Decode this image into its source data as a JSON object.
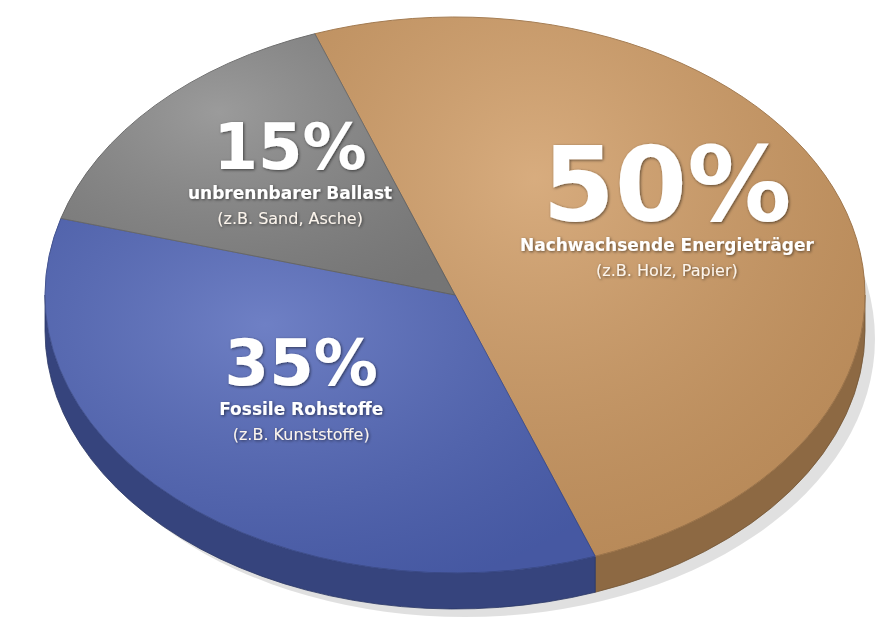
{
  "chart_data": {
    "type": "pie",
    "categories": [
      "Nachwachsende Energieträger",
      "Fossile Rohstoffe",
      "unbrennbarer Ballast"
    ],
    "values": [
      50,
      35,
      15
    ],
    "value_labels": [
      "50%",
      "35%",
      "15%"
    ],
    "annotations": [
      "(z.B. Holz, Papier)",
      "(z.B. Kunststoffe)",
      "(z.B. Sand, Asche)"
    ],
    "colors": [
      "#cf9a62",
      "#4f64b8",
      "#858585"
    ],
    "data_labels": true
  }
}
